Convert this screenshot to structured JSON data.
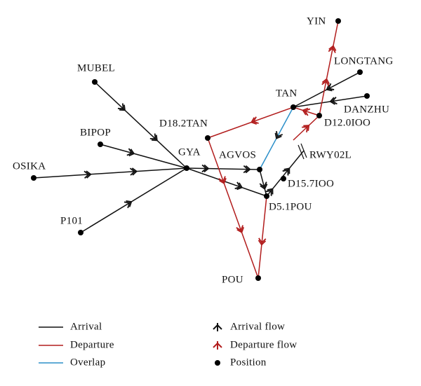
{
  "nodes": [
    {
      "label": "YIN"
    },
    {
      "label": "LONGTANG"
    },
    {
      "label": "TAN"
    },
    {
      "label": "DANZHU"
    },
    {
      "label": "D12.0IOO"
    },
    {
      "label": "D18.2TAN"
    },
    {
      "label": "MUBEL"
    },
    {
      "label": "BIPOP"
    },
    {
      "label": "GYA"
    },
    {
      "label": "AGVOS"
    },
    {
      "label": "RWY02L"
    },
    {
      "label": "D15.7IOO"
    },
    {
      "label": "OSIKA"
    },
    {
      "label": "D5.1POU"
    },
    {
      "label": "P101"
    },
    {
      "label": "POU"
    }
  ],
  "legend": [
    {
      "label": "Arrival"
    },
    {
      "label": "Departure"
    },
    {
      "label": "Overlap"
    },
    {
      "label": "Arrival flow"
    },
    {
      "label": "Departure flow"
    },
    {
      "label": "Position"
    }
  ]
}
